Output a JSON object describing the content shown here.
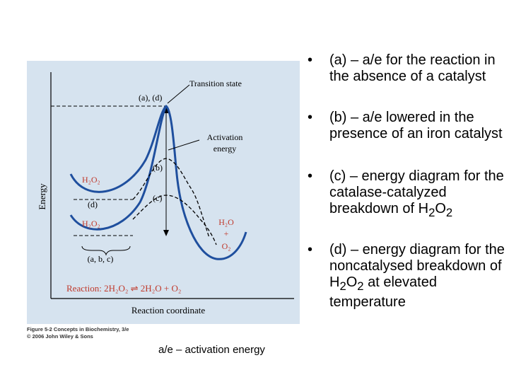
{
  "figure": {
    "energy_label": "Energy",
    "transition_state_label": "Transition state",
    "ts_marker_label": "(a), (d)",
    "activation_energy_label_1": "Activation",
    "activation_energy_label_2": "energy",
    "peak_b_label": "(b)",
    "peak_c_label": "(c)",
    "reactant_label_upper": "H₂O₂",
    "reactant_label_lower": "H₂O₂",
    "curve_d_label": "(d)",
    "baseline_label": "(a, b, c)",
    "product_h2o": "H₂O",
    "product_plus": "+",
    "product_o2": "O₂",
    "reaction_text": "Reaction: 2H₂O₂ ⇌ 2H₂O + O₂",
    "reaction_coordinate_label": "Reaction coordinate",
    "colors": {
      "panel_background": "#d6e3ef",
      "curve_blue": "#1f4f9e",
      "reaction_red": "#c0392b",
      "annotation": "#333333"
    }
  },
  "caption_line1": "Figure 5-2  Concepts in Biochemistry, 3/e",
  "caption_line2": "© 2006 John Wiley & Sons",
  "footnote": "a/e – activation energy",
  "bullets": [
    {
      "symbol": "•",
      "text": "(a) – a/e for the reaction in the absence of a catalyst"
    },
    {
      "symbol": "•",
      "text": "(b) – a/e lowered in the presence of an iron catalyst"
    },
    {
      "symbol": "•",
      "text_prefix": "(c) – energy diagram for the catalase-catalyzed breakdown of H",
      "sub1": "2",
      "mid": "O",
      "sub2": "2"
    },
    {
      "symbol": "•",
      "text_prefix": "(d) – energy diagram for the noncatalysed breakdown of H",
      "sub1": "2",
      "mid": "O",
      "sub2": "2",
      "text_suffix": " at elevated temperature"
    }
  ]
}
